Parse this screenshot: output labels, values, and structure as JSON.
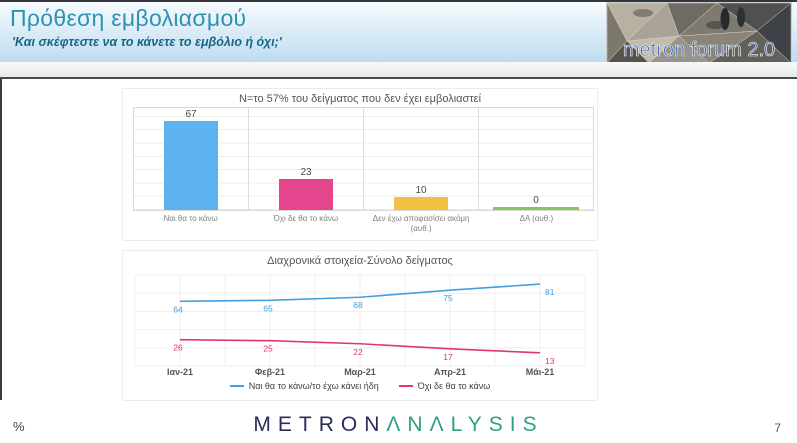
{
  "header": {
    "title": "Πρόθεση εμβολιασμού",
    "subtitle": "'Και σκέφτεστε να το κάνετε το εμβόλιο ή όχι;'",
    "logo_text": "metron forum 2.0"
  },
  "colors": {
    "title_teal": "#2D93B2",
    "subtitle_blue": "#15678A",
    "bar_blue": "#5CB3F0",
    "bar_pink": "#E5458D",
    "bar_yellow": "#F2C043",
    "bar_green": "#85C45F",
    "line_blue": "#42A0E0",
    "line_pink": "#E23378"
  },
  "chart_data": [
    {
      "type": "bar",
      "title": "N=το 57% του δείγματος που δεν έχει εμβολιαστεί",
      "categories": [
        "Ναι θα το κάνω",
        "Όχι δε θα το κάνω",
        "Δεν έχω αποφασίσει ακόμη (αυθ.)",
        "ΔΑ (αυθ.)"
      ],
      "values": [
        67,
        23,
        10,
        0
      ],
      "bar_colors": [
        "#5CB3F0",
        "#E5458D",
        "#F2C043",
        "#85C45F"
      ],
      "xlabel": "",
      "ylabel": "",
      "ylim": [
        0,
        75
      ],
      "grid": true,
      "legend_position": "none"
    },
    {
      "type": "line",
      "title": "Διαχρονικά στοιχεία-Σύνολο δείγματος",
      "x": [
        "Ιαν-21",
        "Φεβ-21",
        "Μαρ-21",
        "Απρ-21",
        "Μάι-21"
      ],
      "series": [
        {
          "name": "Ναι θα το κάνω/το έχω κάνει ήδη",
          "values": [
            64,
            65,
            68,
            75,
            81
          ],
          "color": "#42A0E0"
        },
        {
          "name": "Όχι δε θα το κάνω",
          "values": [
            26,
            25,
            22,
            17,
            13
          ],
          "color": "#E23378"
        }
      ],
      "xlabel": "",
      "ylabel": "",
      "ylim": [
        0,
        90
      ],
      "grid": true,
      "legend_position": "bottom"
    }
  ],
  "footer": {
    "percent_label": "%",
    "logo_metron": "METRON",
    "logo_analysis": "ΛNΛLYSIS",
    "page_number": "7"
  }
}
